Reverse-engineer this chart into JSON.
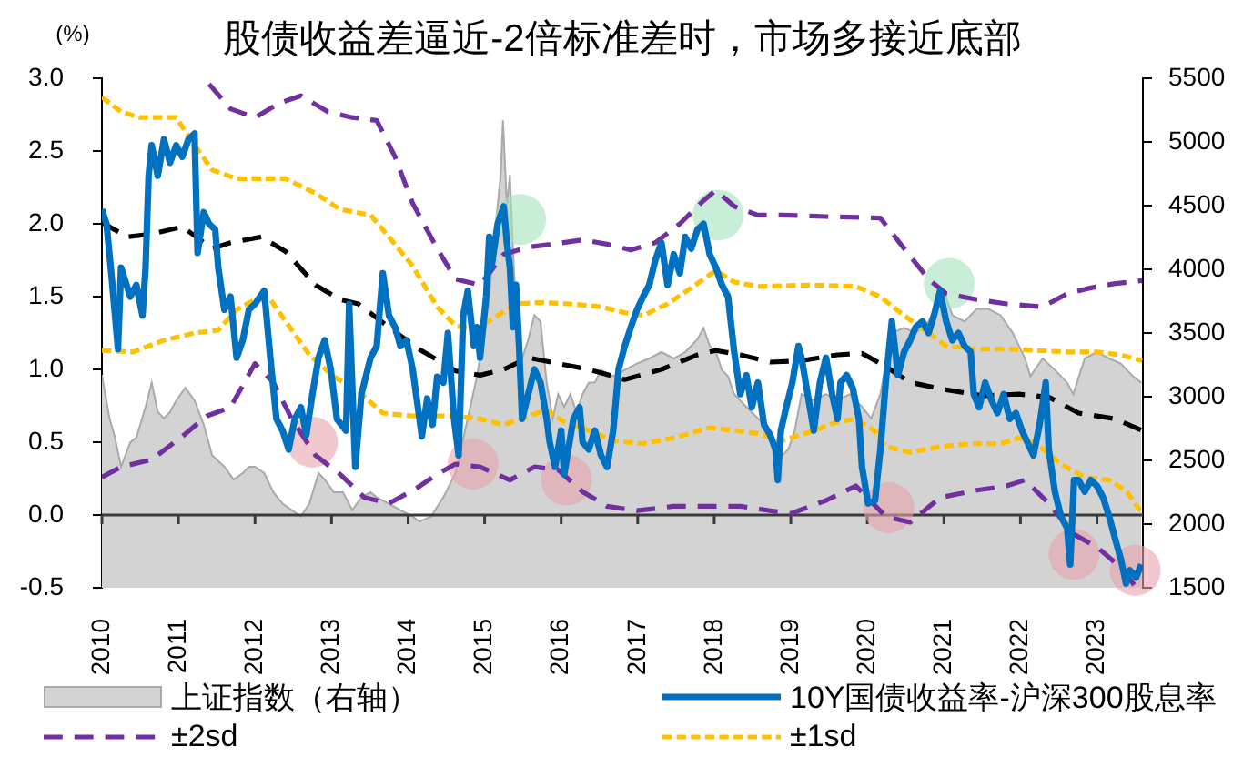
{
  "chart_data": {
    "type": "line",
    "title": "股债收益差逼近-2倍标准差时，市场多接近底部",
    "ylabel": "(%)",
    "xlim": [
      2010,
      2023.6
    ],
    "xticks": [
      2010,
      2011,
      2012,
      2013,
      2014,
      2015,
      2016,
      2017,
      2018,
      2019,
      2020,
      2021,
      2022,
      2023
    ],
    "ylim": [
      -0.5,
      3
    ],
    "yticks": [
      -0.5,
      {
        "value": 0,
        "label": "0.0"
      },
      0.5,
      {
        "value": 1,
        "label": "1.0"
      },
      1.5,
      {
        "value": 2,
        "label": "2.0"
      },
      2.5,
      {
        "value": 3,
        "label": "3.0"
      }
    ],
    "y2lim": [
      1500,
      5500
    ],
    "y2ticks": [
      1500,
      2000,
      2500,
      3000,
      3500,
      4000,
      4500,
      5000,
      5500
    ],
    "legend": "bottom",
    "series": [
      {
        "name": "上证指数（右轴）",
        "type": "area",
        "color": "#d3d3d3",
        "axis": "y2",
        "x": [
          2010.0,
          2010.1,
          2010.17,
          2010.25,
          2010.37,
          2010.45,
          2010.57,
          2010.65,
          2010.73,
          2010.81,
          2010.89,
          2010.97,
          2011.09,
          2011.21,
          2011.33,
          2011.44,
          2011.6,
          2011.72,
          2011.84,
          2011.92,
          2012.0,
          2012.12,
          2012.24,
          2012.36,
          2012.48,
          2012.6,
          2012.71,
          2012.83,
          2012.91,
          2013.03,
          2013.15,
          2013.27,
          2013.39,
          2013.51,
          2013.59,
          2013.75,
          2013.9,
          2014.06,
          2014.15,
          2014.3,
          2014.46,
          2014.62,
          2014.78,
          2014.9,
          2014.98,
          2015.06,
          2015.13,
          2015.21,
          2015.24,
          2015.29,
          2015.33,
          2015.37,
          2015.41,
          2015.49,
          2015.57,
          2015.65,
          2015.73,
          2015.81,
          2015.89,
          2015.96,
          2016.04,
          2016.12,
          2016.2,
          2016.28,
          2016.36,
          2016.44,
          2016.52,
          2016.68,
          2016.83,
          2016.99,
          2017.15,
          2017.31,
          2017.47,
          2017.62,
          2017.78,
          2017.86,
          2017.94,
          2018.02,
          2018.1,
          2018.18,
          2018.26,
          2018.42,
          2018.57,
          2018.73,
          2018.89,
          2018.97,
          2019.05,
          2019.14,
          2019.3,
          2019.46,
          2019.61,
          2019.77,
          2019.93,
          2020.05,
          2020.17,
          2020.32,
          2020.48,
          2020.63,
          2020.8,
          2020.95,
          2021.0,
          2021.11,
          2021.27,
          2021.43,
          2021.58,
          2021.74,
          2021.9,
          2022.06,
          2022.13,
          2022.29,
          2022.45,
          2022.61,
          2022.69,
          2022.84,
          2023.0,
          2023.16,
          2023.31,
          2023.47,
          2023.58
        ],
        "values": [
          3170,
          2830,
          2680,
          2450,
          2640,
          2680,
          2920,
          3110,
          2880,
          2830,
          2880,
          2970,
          3070,
          2970,
          2780,
          2540,
          2450,
          2350,
          2400,
          2450,
          2450,
          2400,
          2250,
          2160,
          2110,
          2060,
          2160,
          2400,
          2350,
          2250,
          2250,
          2110,
          2210,
          2250,
          2210,
          2160,
          2110,
          2060,
          2020,
          2060,
          2210,
          2400,
          2830,
          3160,
          3450,
          3780,
          4260,
          4740,
          5170,
          4500,
          4740,
          4160,
          3690,
          3300,
          3450,
          3640,
          3590,
          3110,
          2830,
          3020,
          2920,
          3020,
          2880,
          3020,
          3110,
          3110,
          3210,
          3160,
          3210,
          3260,
          3300,
          3350,
          3300,
          3350,
          3450,
          3540,
          3400,
          3350,
          3210,
          3160,
          3020,
          2920,
          2830,
          2730,
          2540,
          2590,
          2730,
          3020,
          2970,
          3020,
          2970,
          3020,
          2920,
          2830,
          3020,
          3500,
          3540,
          3500,
          3590,
          3780,
          3830,
          3640,
          3590,
          3690,
          3690,
          3640,
          3500,
          3300,
          3160,
          3300,
          3210,
          3110,
          3020,
          3300,
          3350,
          3300,
          3260,
          3160,
          3110
        ]
      },
      {
        "name": "10Y国债收益率-沪深300股息率",
        "color": "#0070c0",
        "line_style": "solid",
        "x": [
          2010.0,
          2010.06,
          2010.13,
          2010.21,
          2010.25,
          2010.37,
          2010.45,
          2010.53,
          2010.57,
          2010.61,
          2010.65,
          2010.73,
          2010.81,
          2010.89,
          2010.97,
          2011.05,
          2011.13,
          2011.21,
          2011.25,
          2011.33,
          2011.4,
          2011.48,
          2011.52,
          2011.6,
          2011.68,
          2011.76,
          2011.84,
          2011.92,
          2012.0,
          2012.12,
          2012.2,
          2012.28,
          2012.36,
          2012.44,
          2012.52,
          2012.6,
          2012.67,
          2012.75,
          2012.83,
          2012.91,
          2012.99,
          2013.07,
          2013.19,
          2013.23,
          2013.31,
          2013.39,
          2013.51,
          2013.59,
          2013.67,
          2013.75,
          2013.83,
          2013.9,
          2013.98,
          2014.06,
          2014.18,
          2014.25,
          2014.32,
          2014.38,
          2014.46,
          2014.52,
          2014.6,
          2014.66,
          2014.72,
          2014.78,
          2014.86,
          2014.9,
          2014.94,
          2015.02,
          2015.06,
          2015.09,
          2015.17,
          2015.25,
          2015.29,
          2015.33,
          2015.37,
          2015.41,
          2015.45,
          2015.49,
          2015.57,
          2015.65,
          2015.73,
          2015.81,
          2015.85,
          2015.92,
          2016.0,
          2016.04,
          2016.08,
          2016.16,
          2016.24,
          2016.28,
          2016.36,
          2016.44,
          2016.52,
          2016.6,
          2016.68,
          2016.75,
          2016.83,
          2016.91,
          2016.99,
          2017.07,
          2017.15,
          2017.23,
          2017.31,
          2017.39,
          2017.47,
          2017.55,
          2017.62,
          2017.7,
          2017.78,
          2017.86,
          2017.94,
          2018.02,
          2018.1,
          2018.18,
          2018.26,
          2018.34,
          2018.42,
          2018.49,
          2018.57,
          2018.65,
          2018.73,
          2018.8,
          2018.83,
          2018.87,
          2018.94,
          2019.02,
          2019.1,
          2019.14,
          2019.22,
          2019.3,
          2019.38,
          2019.46,
          2019.54,
          2019.61,
          2019.65,
          2019.73,
          2019.81,
          2019.89,
          2019.93,
          2020.01,
          2020.1,
          2020.17,
          2020.24,
          2020.32,
          2020.4,
          2020.48,
          2020.56,
          2020.63,
          2020.72,
          2020.8,
          2020.87,
          2020.95,
          2021.03,
          2021.11,
          2021.19,
          2021.27,
          2021.35,
          2021.39,
          2021.46,
          2021.54,
          2021.62,
          2021.7,
          2021.78,
          2021.86,
          2021.94,
          2022.02,
          2022.09,
          2022.17,
          2022.25,
          2022.33,
          2022.37,
          2022.45,
          2022.53,
          2022.61,
          2022.65,
          2022.7,
          2022.76,
          2022.84,
          2022.92,
          2023.0,
          2023.08,
          2023.16,
          2023.24,
          2023.31,
          2023.38,
          2023.43,
          2023.51,
          2023.58
        ],
        "values": [
          2.1,
          2.0,
          1.62,
          1.14,
          1.7,
          1.5,
          1.58,
          1.37,
          1.7,
          2.33,
          2.54,
          2.33,
          2.58,
          2.42,
          2.54,
          2.46,
          2.58,
          2.62,
          1.8,
          2.08,
          2.0,
          1.96,
          1.7,
          1.41,
          1.5,
          1.08,
          1.2,
          1.41,
          1.45,
          1.54,
          1.08,
          0.66,
          0.58,
          0.45,
          0.66,
          0.74,
          0.55,
          0.83,
          1.08,
          1.2,
          1.0,
          0.66,
          0.58,
          1.45,
          0.33,
          0.83,
          1.08,
          1.16,
          1.66,
          1.37,
          1.29,
          1.16,
          1.2,
          1.0,
          0.54,
          0.8,
          0.62,
          0.95,
          0.91,
          1.25,
          0.66,
          0.41,
          1.37,
          1.54,
          1.16,
          1.29,
          1.08,
          1.5,
          1.91,
          1.7,
          2.0,
          2.12,
          1.87,
          1.7,
          1.29,
          1.58,
          1.16,
          0.66,
          0.83,
          1.0,
          0.91,
          0.66,
          0.5,
          0.33,
          0.58,
          0.28,
          0.41,
          0.66,
          0.74,
          0.5,
          0.45,
          0.58,
          0.41,
          0.33,
          0.58,
          1.0,
          1.16,
          1.29,
          1.41,
          1.5,
          1.58,
          1.75,
          1.87,
          1.58,
          1.79,
          1.66,
          1.91,
          1.83,
          1.96,
          2.0,
          1.79,
          1.7,
          1.58,
          1.5,
          1.12,
          0.83,
          0.96,
          0.74,
          0.91,
          0.62,
          0.55,
          0.45,
          0.24,
          0.58,
          0.74,
          0.91,
          1.16,
          1.08,
          0.83,
          0.58,
          0.91,
          1.08,
          0.83,
          0.66,
          0.91,
          0.96,
          0.87,
          0.66,
          0.33,
          0.08,
          0.1,
          0.45,
          0.91,
          1.33,
          0.96,
          1.12,
          1.2,
          1.29,
          1.33,
          1.25,
          1.37,
          1.54,
          1.33,
          1.2,
          1.25,
          1.16,
          1.12,
          0.83,
          0.74,
          0.91,
          0.79,
          0.7,
          0.83,
          0.66,
          0.7,
          0.58,
          0.5,
          0.41,
          0.62,
          0.91,
          0.45,
          0.16,
          -0.01,
          -0.09,
          -0.34,
          0.24,
          0.24,
          0.16,
          0.24,
          0.2,
          0.12,
          -0.01,
          -0.17,
          -0.3,
          -0.47,
          -0.38,
          -0.43,
          -0.34
        ]
      },
      {
        "name": "±2sd",
        "color": "#7030a0",
        "line_style": "dashed",
        "x": [
          2011.4,
          2011.68,
          2012.0,
          2012.32,
          2012.6,
          2012.95,
          2013.27,
          2013.59,
          2013.83,
          2014.06,
          2014.38,
          2014.62,
          2014.94,
          2015.25,
          2015.57,
          2015.89,
          2016.28,
          2016.6,
          2016.91,
          2017.23,
          2017.55,
          2017.86,
          2018.02,
          2018.26,
          2018.57,
          2018.89,
          2019.46,
          2020.17,
          2020.48,
          2020.8,
          2021.03,
          2021.43,
          2021.82,
          2022.29,
          2022.61,
          2022.92,
          2023.24,
          2023.59
        ],
        "values": [
          2.96,
          2.79,
          2.73,
          2.83,
          2.88,
          2.77,
          2.73,
          2.71,
          2.46,
          2.14,
          1.83,
          1.62,
          1.58,
          1.79,
          1.84,
          1.86,
          1.89,
          1.86,
          1.82,
          1.87,
          2.0,
          2.16,
          2.23,
          2.12,
          2.06,
          2.06,
          2.05,
          2.04,
          1.83,
          1.62,
          1.52,
          1.48,
          1.45,
          1.43,
          1.52,
          1.56,
          1.59,
          1.61
        ]
      },
      {
        "color": "#7030a0",
        "line_style": "dashed",
        "x": [
          2010.0,
          2010.25,
          2010.65,
          2011.05,
          2011.37,
          2011.68,
          2012.0,
          2012.24,
          2012.48,
          2012.79,
          2013.11,
          2013.43,
          2013.75,
          2014.1,
          2014.38,
          2014.62,
          2014.94,
          2015.33,
          2015.65,
          2015.96,
          2016.28,
          2016.6,
          2016.99,
          2017.47,
          2017.86,
          2018.34,
          2018.73,
          2019.0,
          2019.46,
          2019.85,
          2020.24,
          2020.56,
          2020.95,
          2021.43,
          2021.82,
          2022.06,
          2022.37,
          2022.69,
          2023.0,
          2023.31,
          2023.5
        ],
        "values": [
          0.26,
          0.33,
          0.38,
          0.54,
          0.68,
          0.74,
          1.04,
          0.91,
          0.66,
          0.41,
          0.28,
          0.12,
          0.08,
          0.18,
          0.28,
          0.35,
          0.33,
          0.24,
          0.33,
          0.31,
          0.16,
          0.06,
          0.03,
          0.06,
          0.06,
          0.06,
          0.03,
          0.01,
          0.1,
          0.2,
          -0.01,
          -0.05,
          0.12,
          0.17,
          0.2,
          0.24,
          0.08,
          -0.13,
          -0.22,
          -0.36,
          -0.49
        ]
      },
      {
        "name": "±1sd",
        "color": "#ffc000",
        "line_style": "dotted",
        "x": [
          2010.0,
          2010.25,
          2010.49,
          2010.97,
          2011.21,
          2011.44,
          2011.76,
          2012.08,
          2012.4,
          2012.79,
          2013.11,
          2013.51,
          2013.75,
          2014.06,
          2014.38,
          2014.62,
          2014.86,
          2015.17,
          2015.41,
          2015.73,
          2016.12,
          2016.52,
          2016.83,
          2017.07,
          2017.39,
          2017.7,
          2018.02,
          2018.26,
          2018.57,
          2019.3,
          2019.85,
          2020.17,
          2020.48,
          2020.8,
          2021.03,
          2021.43,
          2021.82,
          2022.21,
          2022.61,
          2023.0,
          2023.31,
          2023.59
        ],
        "values": [
          2.87,
          2.77,
          2.73,
          2.73,
          2.54,
          2.37,
          2.31,
          2.31,
          2.31,
          2.21,
          2.1,
          2.06,
          1.91,
          1.71,
          1.43,
          1.3,
          1.27,
          1.37,
          1.45,
          1.46,
          1.45,
          1.43,
          1.39,
          1.37,
          1.45,
          1.56,
          1.68,
          1.6,
          1.57,
          1.58,
          1.57,
          1.5,
          1.37,
          1.25,
          1.16,
          1.14,
          1.14,
          1.13,
          1.12,
          1.12,
          1.1,
          1.06
        ]
      },
      {
        "color": "#ffc000",
        "line_style": "dotted",
        "x": [
          2010.0,
          2010.41,
          2010.81,
          2011.21,
          2011.52,
          2011.76,
          2012.0,
          2012.2,
          2012.4,
          2012.71,
          2013.03,
          2013.35,
          2013.67,
          2014.06,
          2014.38,
          2014.62,
          2014.94,
          2015.25,
          2015.57,
          2015.81,
          2016.04,
          2016.36,
          2016.68,
          2017.07,
          2017.47,
          2017.94,
          2018.26,
          2018.57,
          2018.89,
          2019.3,
          2019.61,
          2019.85,
          2020.09,
          2020.24,
          2020.56,
          2020.95,
          2021.35,
          2021.74,
          2021.98,
          2022.21,
          2022.53,
          2022.84,
          2023.16,
          2023.39,
          2023.59
        ],
        "values": [
          1.13,
          1.12,
          1.2,
          1.25,
          1.27,
          1.41,
          1.48,
          1.48,
          1.33,
          1.1,
          0.95,
          0.85,
          0.7,
          0.68,
          0.68,
          0.68,
          0.66,
          0.62,
          0.68,
          0.72,
          0.64,
          0.58,
          0.51,
          0.49,
          0.53,
          0.6,
          0.58,
          0.56,
          0.51,
          0.58,
          0.64,
          0.66,
          0.58,
          0.47,
          0.43,
          0.47,
          0.49,
          0.49,
          0.53,
          0.49,
          0.35,
          0.26,
          0.24,
          0.16,
          0.01
        ]
      },
      {
        "color": "#000000",
        "line_style": "dashed",
        "x": [
          2010.0,
          2010.33,
          2010.65,
          2011.05,
          2011.44,
          2011.68,
          2012.08,
          2012.4,
          2012.79,
          2013.11,
          2013.35,
          2013.75,
          2014.14,
          2014.62,
          2014.94,
          2015.25,
          2015.57,
          2015.96,
          2016.36,
          2016.83,
          2017.31,
          2017.78,
          2018.02,
          2018.34,
          2018.73,
          2019.14,
          2019.61,
          2019.93,
          2020.24,
          2020.56,
          2021.03,
          2021.5,
          2021.98,
          2022.37,
          2022.76,
          2023.24,
          2023.59
        ],
        "values": [
          2.01,
          1.91,
          1.93,
          1.98,
          1.83,
          1.87,
          1.91,
          1.81,
          1.58,
          1.48,
          1.45,
          1.29,
          1.14,
          0.99,
          0.96,
          1.0,
          1.08,
          1.04,
          1.0,
          0.93,
          1.0,
          1.1,
          1.13,
          1.1,
          1.05,
          1.06,
          1.1,
          1.11,
          1.02,
          0.91,
          0.86,
          0.82,
          0.83,
          0.81,
          0.7,
          0.66,
          0.58
        ]
      },
      {
        "type": "scatter",
        "color": "#e6a3ac",
        "marker": "circle",
        "x": [
          2012.75,
          2014.85,
          2016.07,
          2020.28,
          2022.7,
          2023.5
        ],
        "values": [
          0.5,
          0.35,
          0.24,
          0.05,
          -0.27,
          -0.38
        ]
      },
      {
        "type": "scatter",
        "color": "#a3e3bc",
        "marker": "circle",
        "x": [
          2015.47,
          2018.05,
          2021.07
        ],
        "values": [
          2.03,
          2.06,
          1.59
        ]
      }
    ]
  }
}
